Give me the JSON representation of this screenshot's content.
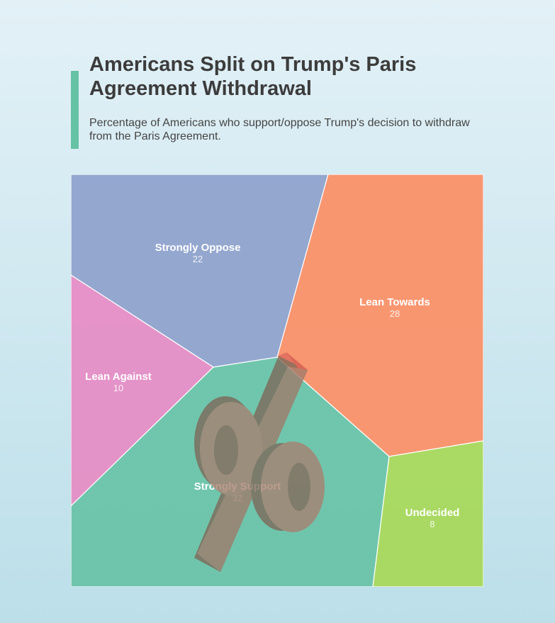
{
  "header": {
    "title": "Americans Split on Trump's Paris Agreement Withdrawal",
    "subtitle": "Percentage of Americans who support/oppose Trump's decision to withdraw from the Paris Agreement."
  },
  "chart_data": {
    "type": "voronoi-treemap",
    "title": "Americans Split on Trump's Paris Agreement Withdrawal",
    "subtitle": "Percentage of Americans who support/oppose Trump's decision to withdraw from the Paris Agreement.",
    "categories": [
      "Strongly Oppose",
      "Lean Towards",
      "Lean Against",
      "Strongly Support",
      "Undecided"
    ],
    "values": [
      22,
      28,
      10,
      32,
      8
    ],
    "colors": [
      "#8da0cb",
      "#fc8d62",
      "#e78ac3",
      "#66c2a5",
      "#a6d854"
    ],
    "overlay_icon": "percent-icon"
  }
}
